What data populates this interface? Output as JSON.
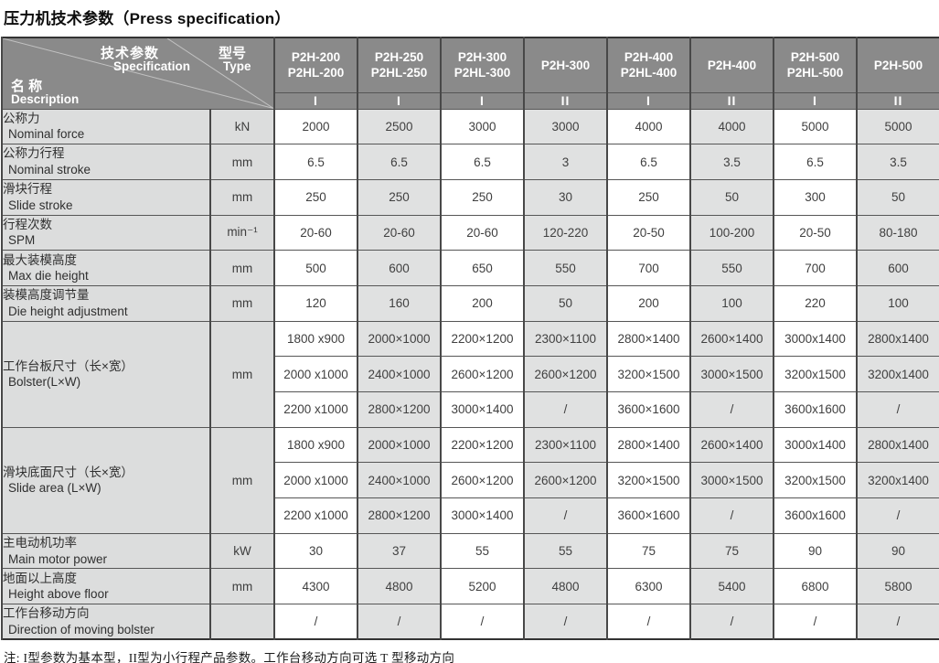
{
  "title": "压力机技术参数（Press specification）",
  "colors": {
    "header_bg": "#8a8a8a",
    "header_text": "#ffffff",
    "label_col_bg": "#dcdddd",
    "alt_col_bg": "#e0e1e1",
    "white_col_bg": "#ffffff",
    "grid_line": "#484848"
  },
  "table": {
    "corner": {
      "spec_zh": "技术参数",
      "spec_en": "Specification",
      "type_zh": "型号",
      "type_en": "Type",
      "name_zh": "名 称",
      "name_en": "Description"
    },
    "models": [
      {
        "line1": "P2H-200",
        "line2": "P2HL-200"
      },
      {
        "line1": "P2H-250",
        "line2": "P2HL-250"
      },
      {
        "line1": "P2H-300",
        "line2": "P2HL-300"
      },
      {
        "line1": "P2H-300",
        "line2": ""
      },
      {
        "line1": "P2H-400",
        "line2": "P2HL-400"
      },
      {
        "line1": "P2H-400",
        "line2": ""
      },
      {
        "line1": "P2H-500",
        "line2": "P2HL-500"
      },
      {
        "line1": "P2H-500",
        "line2": ""
      }
    ],
    "types": [
      "I",
      "I",
      "I",
      "II",
      "I",
      "II",
      "I",
      "II"
    ],
    "rows": [
      {
        "zh": "公称力",
        "en": "Nominal force",
        "unit": "kN",
        "values": [
          "2000",
          "2500",
          "3000",
          "3000",
          "4000",
          "4000",
          "5000",
          "5000"
        ]
      },
      {
        "zh": "公称力行程",
        "en": "Nominal stroke",
        "unit": "mm",
        "values": [
          "6.5",
          "6.5",
          "6.5",
          "3",
          "6.5",
          "3.5",
          "6.5",
          "3.5"
        ]
      },
      {
        "zh": "滑块行程",
        "en": "Slide stroke",
        "unit": "mm",
        "values": [
          "250",
          "250",
          "250",
          "30",
          "250",
          "50",
          "300",
          "50"
        ]
      },
      {
        "zh": "行程次数",
        "en": "SPM",
        "unit": "min⁻¹",
        "values": [
          "20-60",
          "20-60",
          "20-60",
          "120-220",
          "20-50",
          "100-200",
          "20-50",
          "80-180"
        ]
      },
      {
        "zh": "最大装模高度",
        "en": "Max die height",
        "unit": "mm",
        "values": [
          "500",
          "600",
          "650",
          "550",
          "700",
          "550",
          "700",
          "600"
        ]
      },
      {
        "zh": "装模高度调节量",
        "en": "Die height adjustment",
        "unit": "mm",
        "values": [
          "120",
          "160",
          "200",
          "50",
          "200",
          "100",
          "220",
          "100"
        ]
      },
      {
        "zh": "工作台板尺寸（长×宽）",
        "en": "Bolster(L×W)",
        "unit": "mm",
        "subrows": [
          [
            "1800 x900",
            "2000×1000",
            "2200×1200",
            "2300×1100",
            "2800×1400",
            "2600×1400",
            "3000x1400",
            "2800x1400"
          ],
          [
            "2000 x1000",
            "2400×1000",
            "2600×1200",
            "2600×1200",
            "3200×1500",
            "3000×1500",
            "3200x1500",
            "3200x1400"
          ],
          [
            "2200 x1000",
            "2800×1200",
            "3000×1400",
            "/",
            "3600×1600",
            "/",
            "3600x1600",
            "/"
          ]
        ]
      },
      {
        "zh": "滑块底面尺寸（长×宽）",
        "en": "Slide area (L×W)",
        "unit": "mm",
        "subrows": [
          [
            "1800 x900",
            "2000×1000",
            "2200×1200",
            "2300×1100",
            "2800×1400",
            "2600×1400",
            "3000x1400",
            "2800x1400"
          ],
          [
            "2000 x1000",
            "2400×1000",
            "2600×1200",
            "2600×1200",
            "3200×1500",
            "3000×1500",
            "3200x1500",
            "3200x1400"
          ],
          [
            "2200 x1000",
            "2800×1200",
            "3000×1400",
            "/",
            "3600×1600",
            "/",
            "3600x1600",
            "/"
          ]
        ]
      },
      {
        "zh": "主电动机功率",
        "en": "Main motor power",
        "unit": "kW",
        "values": [
          "30",
          "37",
          "55",
          "55",
          "75",
          "75",
          "90",
          "90"
        ]
      },
      {
        "zh": "地面以上高度",
        "en": "Height above floor",
        "unit": "mm",
        "values": [
          "4300",
          "4800",
          "5200",
          "4800",
          "6300",
          "5400",
          "6800",
          "5800"
        ]
      },
      {
        "zh": "工作台移动方向",
        "en": "Direction of moving bolster",
        "unit": "",
        "values": [
          "/",
          "/",
          "/",
          "/",
          "/",
          "/",
          "/",
          "/"
        ]
      }
    ]
  },
  "footnote": "注: I型参数为基本型，II型为小行程产品参数。工作台移动方向可选 T 型移动方向"
}
